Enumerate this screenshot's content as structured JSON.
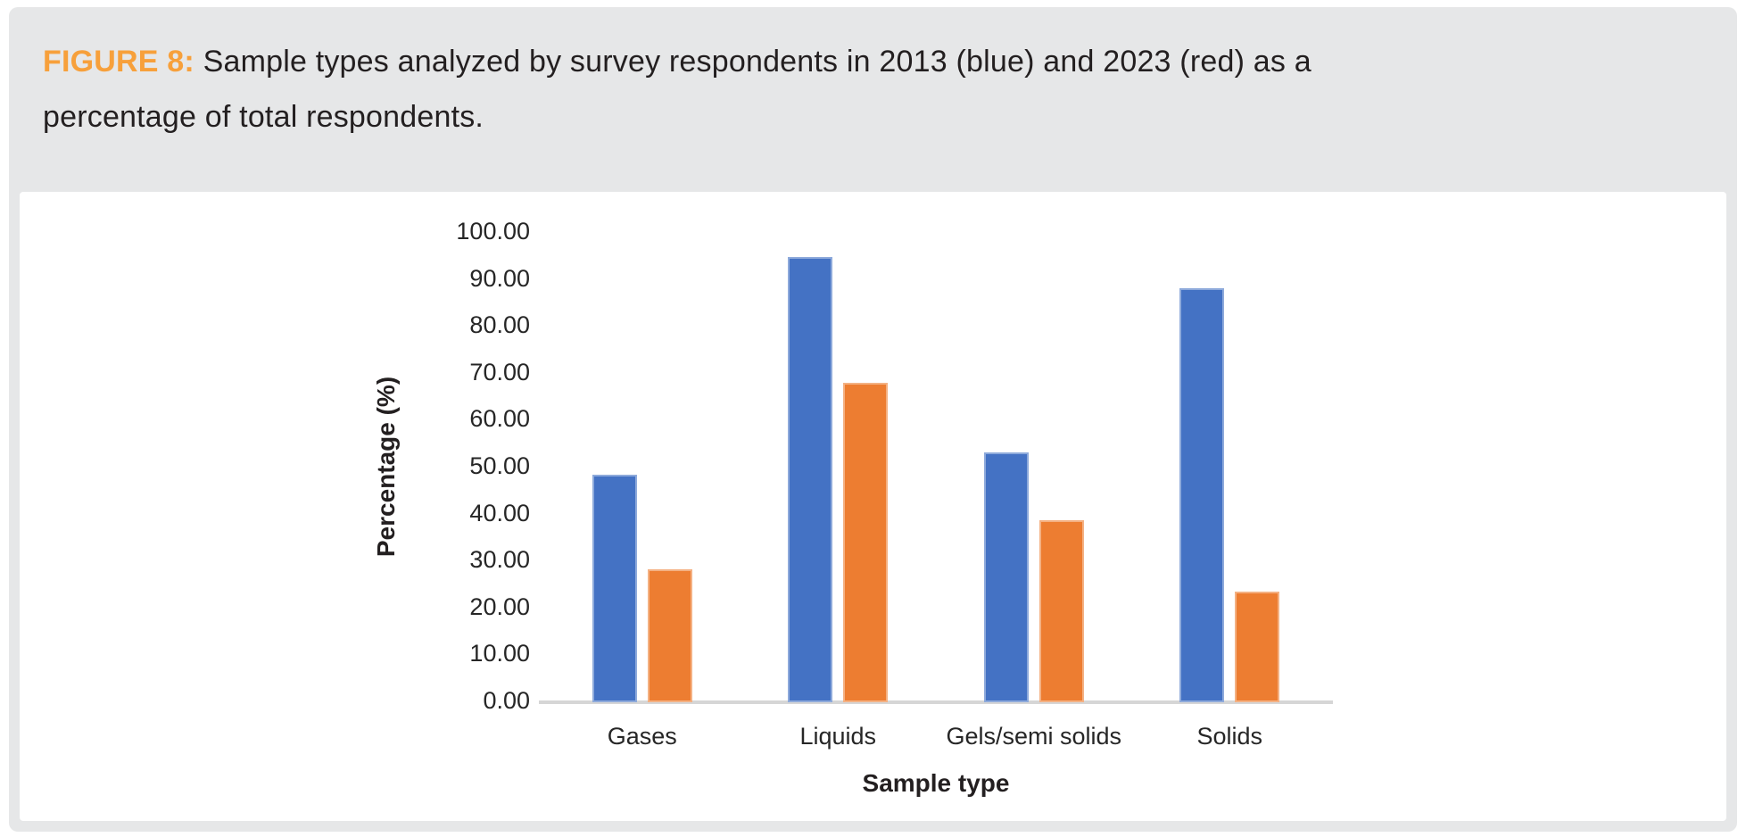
{
  "caption": {
    "label": "FIGURE 8:",
    "text": " Sample types analyzed by survey respondents in 2013 (blue) and 2023 (red) as a percentage of total respondents."
  },
  "chart_data": {
    "type": "bar",
    "categories": [
      "Gases",
      "Liquids",
      "Gels/semi solids",
      "Solids"
    ],
    "series": [
      {
        "name": "2013",
        "color": "#4472c4",
        "values": [
          48.5,
          94.8,
          53.2,
          88.3
        ]
      },
      {
        "name": "2023",
        "color": "#ed7d31",
        "values": [
          28.4,
          68.0,
          38.8,
          23.6
        ]
      }
    ],
    "title": "",
    "xlabel": "Sample type",
    "ylabel": "Percentage (%)",
    "ylim": [
      0,
      100
    ],
    "ytick_step": 10,
    "ytick_decimals": 2,
    "grid": false,
    "legend": "none (series colors referenced in caption text)"
  },
  "colors": {
    "figure_label": "#f7a03b",
    "caption_text": "#231f20",
    "card_background": "#e6e7e8",
    "panel_background": "#ffffff",
    "axis_line": "#d6d6d6",
    "series_2013": "#4472c4",
    "series_2023": "#ed7d31"
  }
}
